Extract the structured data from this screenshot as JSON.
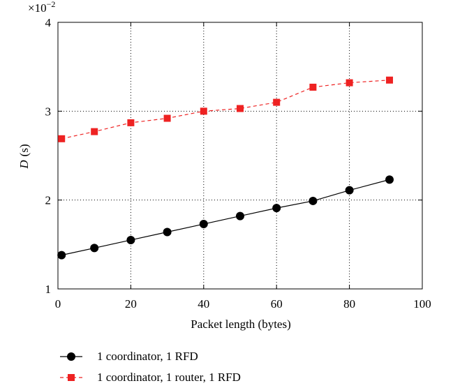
{
  "chart_data": {
    "type": "line",
    "xlabel": "Packet length (bytes)",
    "ylabel_var": "D",
    "ylabel_unit": "(s)",
    "y_multiplier": {
      "base": "×10",
      "exp": "−2"
    },
    "xlim": [
      0,
      100
    ],
    "ylim": [
      1,
      4
    ],
    "xticks": [
      0,
      20,
      40,
      60,
      80,
      100
    ],
    "yticks": [
      1,
      2,
      3,
      4
    ],
    "grid": "dotted",
    "legend_placement": "bottom",
    "series": [
      {
        "name": "1 coordinator, 1 RFD",
        "color": "#000000",
        "marker": "circle",
        "line_style": "solid",
        "x": [
          1,
          10,
          20,
          30,
          40,
          50,
          60,
          70,
          80,
          91
        ],
        "y": [
          1.38,
          1.46,
          1.55,
          1.64,
          1.73,
          1.82,
          1.91,
          1.99,
          2.11,
          2.23
        ]
      },
      {
        "name": "1 coordinator, 1 router, 1 RFD",
        "color": "#ee2222",
        "marker": "square",
        "line_style": "dashed",
        "x": [
          1,
          10,
          20,
          30,
          40,
          50,
          60,
          70,
          80,
          91
        ],
        "y": [
          2.69,
          2.77,
          2.87,
          2.92,
          3.0,
          3.03,
          3.1,
          3.27,
          3.32,
          3.35
        ]
      }
    ]
  }
}
